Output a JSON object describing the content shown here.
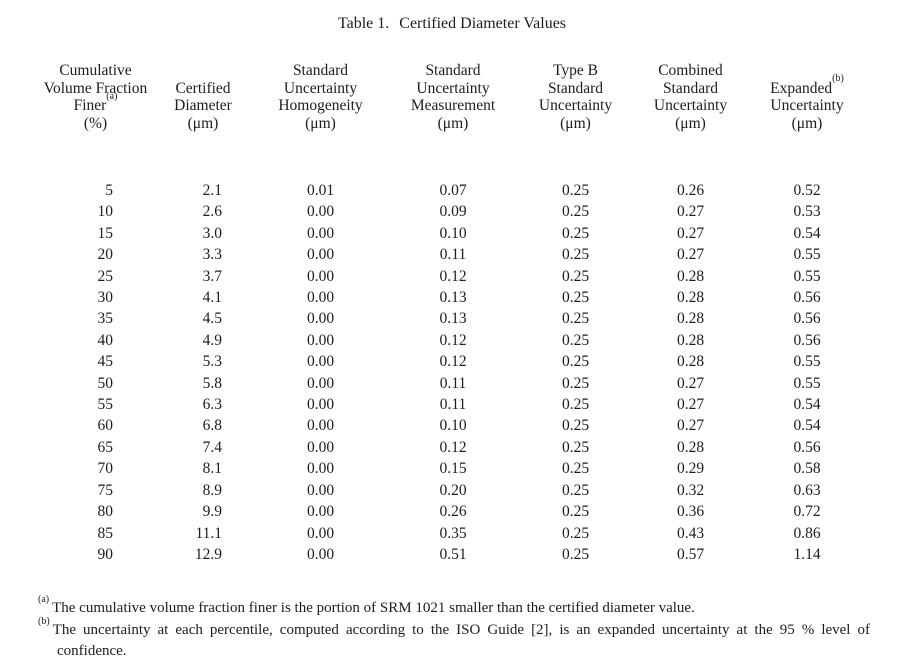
{
  "page": {
    "title_label": "Table 1.",
    "title_text": "Certified Diameter Values"
  },
  "table": {
    "columns": [
      {
        "lines": [
          "Cumulative",
          "Volume Fraction",
          "Finer",
          "(%)"
        ],
        "sup": "(a)"
      },
      {
        "lines": [
          "Certified",
          "Diameter",
          "(μm)"
        ]
      },
      {
        "lines": [
          "Standard",
          "Uncertainty",
          "Homogeneity",
          "(μm)"
        ]
      },
      {
        "lines": [
          "Standard",
          "Uncertainty",
          "Measurement",
          "(μm)"
        ]
      },
      {
        "lines": [
          "Type B",
          "Standard",
          "Uncertainty",
          "(μm)"
        ]
      },
      {
        "lines": [
          "Combined",
          "Standard",
          "Uncertainty",
          "(μm)"
        ]
      },
      {
        "lines": [
          "Expanded",
          "Uncertainty",
          "(μm)"
        ],
        "sup": "(b)"
      }
    ],
    "rows": [
      [
        "5",
        "2.1",
        "0.01",
        "0.07",
        "0.25",
        "0.26",
        "0.52"
      ],
      [
        "10",
        "2.6",
        "0.00",
        "0.09",
        "0.25",
        "0.27",
        "0.53"
      ],
      [
        "15",
        "3.0",
        "0.00",
        "0.10",
        "0.25",
        "0.27",
        "0.54"
      ],
      [
        "20",
        "3.3",
        "0.00",
        "0.11",
        "0.25",
        "0.27",
        "0.55"
      ],
      [
        "25",
        "3.7",
        "0.00",
        "0.12",
        "0.25",
        "0.28",
        "0.55"
      ],
      [
        "30",
        "4.1",
        "0.00",
        "0.13",
        "0.25",
        "0.28",
        "0.56"
      ],
      [
        "35",
        "4.5",
        "0.00",
        "0.13",
        "0.25",
        "0.28",
        "0.56"
      ],
      [
        "40",
        "4.9",
        "0.00",
        "0.12",
        "0.25",
        "0.28",
        "0.56"
      ],
      [
        "45",
        "5.3",
        "0.00",
        "0.12",
        "0.25",
        "0.28",
        "0.55"
      ],
      [
        "50",
        "5.8",
        "0.00",
        "0.11",
        "0.25",
        "0.27",
        "0.55"
      ],
      [
        "55",
        "6.3",
        "0.00",
        "0.11",
        "0.25",
        "0.27",
        "0.54"
      ],
      [
        "60",
        "6.8",
        "0.00",
        "0.10",
        "0.25",
        "0.27",
        "0.54"
      ],
      [
        "65",
        "7.4",
        "0.00",
        "0.12",
        "0.25",
        "0.28",
        "0.56"
      ],
      [
        "70",
        "8.1",
        "0.00",
        "0.15",
        "0.25",
        "0.29",
        "0.58"
      ],
      [
        "75",
        "8.9",
        "0.00",
        "0.20",
        "0.25",
        "0.32",
        "0.63"
      ],
      [
        "80",
        "9.9",
        "0.00",
        "0.26",
        "0.25",
        "0.36",
        "0.72"
      ],
      [
        "85",
        "11.1",
        "0.00",
        "0.35",
        "0.25",
        "0.43",
        "0.86"
      ],
      [
        "90",
        "12.9",
        "0.00",
        "0.51",
        "0.25",
        "0.57",
        "1.14"
      ]
    ]
  },
  "footnotes": [
    {
      "marker": "(a)",
      "text": "The cumulative volume fraction finer is the portion of SRM 1021 smaller than the certified diameter value."
    },
    {
      "marker": "(b)",
      "text": "The uncertainty at each percentile, computed according to the ISO Guide [2], is an expanded uncertainty at the 95 % level of confidence."
    }
  ],
  "colors": {
    "text": "#1d1d1d",
    "background": "#ffffff"
  }
}
